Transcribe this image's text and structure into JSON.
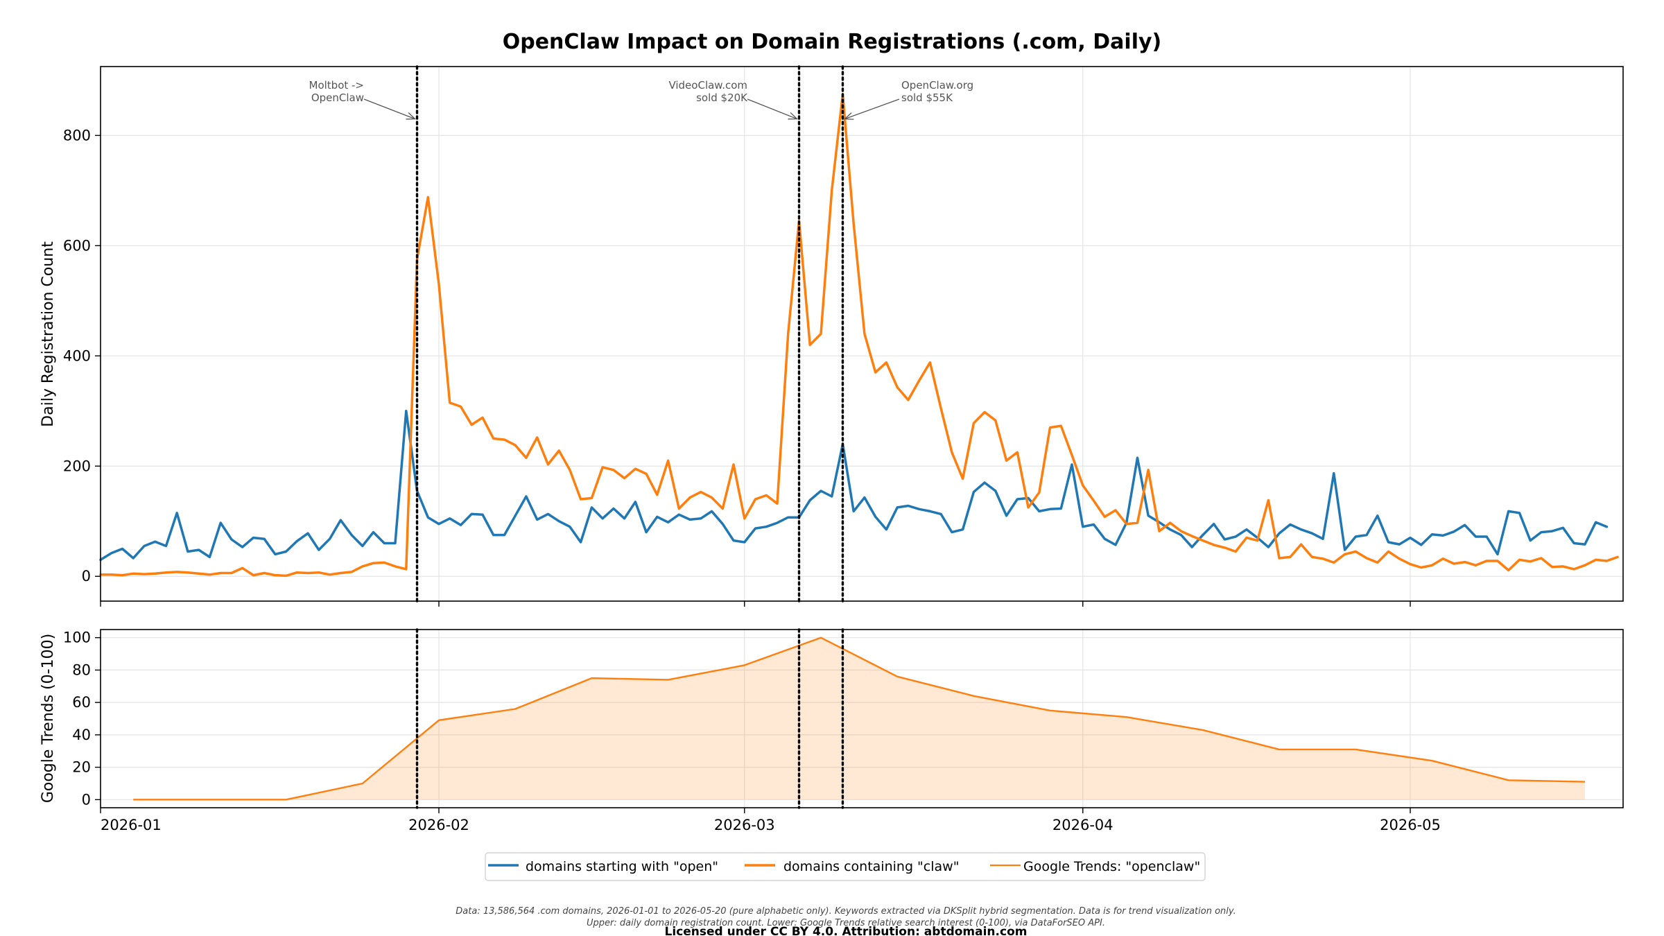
{
  "chart_data": {
    "type": "line",
    "title": "OpenClaw Impact on Domain Registrations (.com, Daily)",
    "start_date": "2026-01-01",
    "x_ticks": [
      "2026-01",
      "2026-02",
      "2026-03",
      "2026-04",
      "2026-05"
    ],
    "top": {
      "ylabel": "Daily Registration Count",
      "ylim": [
        -45,
        925
      ],
      "yticks": [
        "0",
        "200",
        "400",
        "600",
        "800"
      ],
      "grid": true,
      "series": [
        {
          "name": "domains starting with \"open\"",
          "color": "#1f77b4",
          "x_start": "2026-01-01",
          "values": [
            30,
            42,
            50,
            33,
            55,
            63,
            55,
            115,
            45,
            48,
            35,
            97,
            67,
            53,
            70,
            68,
            40,
            45,
            64,
            78,
            48,
            68,
            102,
            75,
            55,
            80,
            60,
            60,
            300,
            155,
            107,
            95,
            105,
            93,
            113,
            112,
            75,
            75,
            110,
            145,
            103,
            113,
            100,
            90,
            62,
            125,
            105,
            123,
            105,
            135,
            80,
            108,
            98,
            112,
            103,
            105,
            118,
            95,
            65,
            62,
            87,
            90,
            97,
            107,
            107,
            138,
            155,
            145,
            240,
            118,
            143,
            108,
            85,
            125,
            128,
            122,
            118,
            113,
            80,
            85,
            153,
            170,
            155,
            110,
            140,
            142,
            118,
            122,
            123,
            203,
            90,
            94,
            68,
            57,
            97,
            215,
            110,
            98,
            85,
            75,
            53,
            75,
            95,
            67,
            72,
            85,
            70,
            53,
            78,
            94,
            85,
            78,
            68,
            187,
            48,
            72,
            75,
            110,
            62,
            58,
            70,
            57,
            76,
            74,
            81,
            93,
            72,
            72,
            40,
            118,
            115,
            65,
            80,
            82,
            88,
            60,
            58,
            98,
            90
          ]
        },
        {
          "name": "domains containing \"claw\"",
          "color": "#ff7f0e",
          "x_start": "2026-01-01",
          "values": [
            3,
            3,
            2,
            5,
            4,
            5,
            7,
            8,
            7,
            5,
            3,
            6,
            6,
            15,
            2,
            6,
            2,
            1,
            7,
            6,
            7,
            3,
            6,
            8,
            18,
            24,
            25,
            18,
            13,
            575,
            688,
            530,
            315,
            308,
            275,
            288,
            250,
            248,
            238,
            215,
            252,
            203,
            228,
            193,
            140,
            142,
            198,
            193,
            178,
            195,
            186,
            148,
            210,
            123,
            143,
            153,
            143,
            123,
            203,
            105,
            140,
            147,
            132,
            440,
            645,
            420,
            440,
            700,
            875,
            640,
            440,
            370,
            388,
            343,
            320,
            355,
            388,
            305,
            225,
            177,
            278,
            298,
            283,
            210,
            225,
            125,
            152,
            270,
            273,
            220,
            165,
            137,
            108,
            120,
            95,
            97,
            193,
            82,
            97,
            82,
            73,
            65,
            57,
            52,
            45,
            70,
            65,
            138,
            33,
            35,
            58,
            35,
            32,
            25,
            40,
            45,
            33,
            25,
            45,
            32,
            22,
            16,
            20,
            32,
            23,
            26,
            20,
            28,
            28,
            11,
            30,
            27,
            33,
            17,
            18,
            13,
            20,
            30,
            28,
            35
          ]
        }
      ],
      "annotations": [
        {
          "date": "2026-01-30",
          "label_lines": [
            "Moltbot ->",
            "OpenClaw"
          ]
        },
        {
          "date": "2026-03-06",
          "label_lines": [
            "VideoClaw.com",
            "sold $20K"
          ]
        },
        {
          "date": "2026-03-10",
          "label_lines": [
            "OpenClaw.org",
            "sold $55K"
          ]
        }
      ]
    },
    "bottom": {
      "ylabel": "Google Trends (0-100)",
      "ylim": [
        -5,
        105
      ],
      "yticks": [
        "0",
        "20",
        "40",
        "60",
        "80",
        "100"
      ],
      "grid": true,
      "series": {
        "name": "Google Trends: \"openclaw\"",
        "color": "#ff7f0e",
        "dates": [
          "2026-01-04",
          "2026-01-18",
          "2026-01-25",
          "2026-02-01",
          "2026-02-08",
          "2026-02-15",
          "2026-02-22",
          "2026-03-01",
          "2026-03-08",
          "2026-03-15",
          "2026-03-22",
          "2026-03-29",
          "2026-04-05",
          "2026-04-12",
          "2026-04-19",
          "2026-04-26",
          "2026-05-03",
          "2026-05-10",
          "2026-05-17"
        ],
        "values": [
          0,
          0,
          10,
          49,
          56,
          75,
          74,
          83,
          100,
          76,
          64,
          55,
          51,
          43,
          31,
          31,
          24,
          12,
          11
        ]
      }
    },
    "legend_placement": "bottom-center",
    "legend": [
      {
        "label": "domains starting with \"open\"",
        "color": "#1f77b4",
        "width": 3.5
      },
      {
        "label": "domains containing \"claw\"",
        "color": "#ff7f0e",
        "width": 3.5
      },
      {
        "label": "Google Trends: \"openclaw\"",
        "color": "#ff7f0e",
        "width": 2.2
      }
    ],
    "footnote_lines": [
      "Data: 13,586,564 .com domains, 2026-01-01 to 2026-05-20 (pure alphabetic only). Keywords extracted via DKSplit hybrid segmentation. Data is for trend visualization only.",
      "Upper: daily domain registration count. Lower: Google Trends relative search interest (0-100), via DataForSEO API."
    ],
    "license": "Licensed under CC BY 4.0. Attribution: abtdomain.com"
  }
}
